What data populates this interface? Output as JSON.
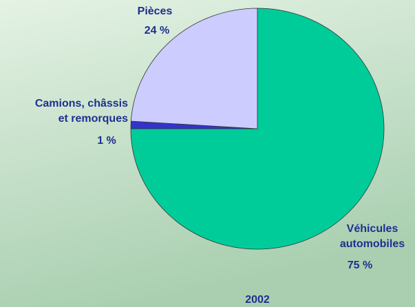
{
  "chart_data": {
    "type": "pie",
    "title": "2002",
    "categories": [
      [
        "Véhicules",
        "automobiles"
      ],
      [
        "Camions, châssis",
        "et remorques"
      ],
      [
        "Pièces"
      ]
    ],
    "values": [
      75,
      1,
      24
    ],
    "value_labels": [
      "75 %",
      "1 %",
      "24 %"
    ],
    "colors": [
      "#00cc99",
      "#3333cc",
      "#ccccff"
    ]
  }
}
